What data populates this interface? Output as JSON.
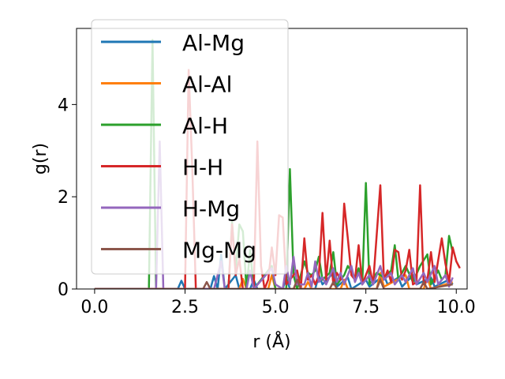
{
  "chart_data": {
    "type": "line",
    "xlabel": "r (Å)",
    "ylabel": "g(r)",
    "xlim": [
      -0.5,
      10.3
    ],
    "ylim": [
      0,
      5.65
    ],
    "x_ticks": [
      0.0,
      2.5,
      5.0,
      7.5,
      10.0
    ],
    "x_tick_labels": [
      "0.0",
      "2.5",
      "5.0",
      "7.5",
      "10.0"
    ],
    "y_ticks": [
      0,
      2,
      4
    ],
    "y_tick_labels": [
      "0",
      "2",
      "4"
    ],
    "grid": false,
    "legend_position": "upper-left",
    "series": [
      {
        "name": "Al-Mg",
        "color": "#1f77b4",
        "points": [
          [
            0.0,
            0
          ],
          [
            2.3,
            0
          ],
          [
            2.4,
            0.18
          ],
          [
            2.5,
            0
          ],
          [
            3.2,
            0
          ],
          [
            3.3,
            0.28
          ],
          [
            3.4,
            0
          ],
          [
            3.5,
            0.75
          ],
          [
            3.6,
            0
          ],
          [
            3.9,
            0.3
          ],
          [
            4.0,
            0
          ],
          [
            4.3,
            0
          ],
          [
            4.4,
            0.2
          ],
          [
            4.5,
            0
          ],
          [
            5.2,
            0
          ],
          [
            5.3,
            0.25
          ],
          [
            5.4,
            0
          ],
          [
            6.1,
            0
          ],
          [
            6.2,
            0.3
          ],
          [
            6.3,
            0.1
          ],
          [
            6.6,
            0.35
          ],
          [
            6.7,
            0.05
          ],
          [
            7.0,
            0.25
          ],
          [
            7.1,
            0
          ],
          [
            7.5,
            0.2
          ],
          [
            7.6,
            0.05
          ],
          [
            8.0,
            0.3
          ],
          [
            8.1,
            0.1
          ],
          [
            8.4,
            0.25
          ],
          [
            8.5,
            0.05
          ],
          [
            8.8,
            0.3
          ],
          [
            8.9,
            0.1
          ],
          [
            9.3,
            0.25
          ],
          [
            9.4,
            0.05
          ],
          [
            9.8,
            0.2
          ],
          [
            9.9,
            0.1
          ]
        ]
      },
      {
        "name": "Al-Al",
        "color": "#ff7f0e",
        "points": [
          [
            0.0,
            0
          ],
          [
            4.0,
            0
          ],
          [
            4.1,
            0.22
          ],
          [
            4.2,
            0
          ],
          [
            4.8,
            0
          ],
          [
            4.9,
            0.3
          ],
          [
            5.0,
            0
          ],
          [
            5.8,
            0
          ],
          [
            5.9,
            0.15
          ],
          [
            6.0,
            0
          ],
          [
            6.8,
            0
          ],
          [
            6.9,
            0.2
          ],
          [
            7.0,
            0
          ],
          [
            7.8,
            0
          ],
          [
            7.9,
            0.35
          ],
          [
            8.0,
            0.05
          ],
          [
            8.6,
            0.3
          ],
          [
            8.7,
            0
          ],
          [
            9.1,
            0
          ],
          [
            9.2,
            0.25
          ],
          [
            9.3,
            0
          ],
          [
            9.9,
            0.15
          ]
        ]
      },
      {
        "name": "Al-H",
        "color": "#2ca02c",
        "points": [
          [
            0.0,
            0
          ],
          [
            1.5,
            0
          ],
          [
            1.6,
            5.4
          ],
          [
            1.7,
            0
          ],
          [
            3.7,
            0
          ],
          [
            3.8,
            1.45
          ],
          [
            3.9,
            0.4
          ],
          [
            4.0,
            1.4
          ],
          [
            4.1,
            1.25
          ],
          [
            4.2,
            0
          ],
          [
            4.3,
            0.85
          ],
          [
            4.4,
            0
          ],
          [
            4.9,
            0.5
          ],
          [
            5.0,
            0
          ],
          [
            5.3,
            0
          ],
          [
            5.4,
            2.6
          ],
          [
            5.5,
            0.3
          ],
          [
            5.6,
            0
          ],
          [
            5.8,
            0.6
          ],
          [
            5.9,
            0.35
          ],
          [
            6.0,
            0.3
          ],
          [
            6.1,
            0.4
          ],
          [
            6.2,
            0.7
          ],
          [
            6.3,
            0.2
          ],
          [
            6.5,
            0.35
          ],
          [
            6.6,
            0.8
          ],
          [
            6.7,
            0.1
          ],
          [
            6.9,
            0.3
          ],
          [
            7.0,
            0.5
          ],
          [
            7.2,
            0.25
          ],
          [
            7.3,
            0.45
          ],
          [
            7.4,
            0.1
          ],
          [
            7.5,
            2.3
          ],
          [
            7.6,
            0.1
          ],
          [
            7.8,
            0.35
          ],
          [
            8.0,
            0.25
          ],
          [
            8.2,
            0.4
          ],
          [
            8.3,
            0.95
          ],
          [
            8.4,
            0.2
          ],
          [
            8.6,
            0.5
          ],
          [
            8.8,
            0.15
          ],
          [
            9.0,
            0.5
          ],
          [
            9.2,
            0.75
          ],
          [
            9.3,
            0.1
          ],
          [
            9.5,
            0.4
          ],
          [
            9.6,
            0.2
          ],
          [
            9.7,
            0.3
          ],
          [
            9.8,
            1.15
          ],
          [
            9.9,
            0.8
          ]
        ]
      },
      {
        "name": "H-H",
        "color": "#d62728",
        "points": [
          [
            0.0,
            0
          ],
          [
            2.5,
            0
          ],
          [
            2.6,
            4.75
          ],
          [
            2.7,
            2.6
          ],
          [
            2.8,
            0
          ],
          [
            3.0,
            0
          ],
          [
            3.7,
            0
          ],
          [
            3.8,
            1.4
          ],
          [
            3.9,
            0.3
          ],
          [
            4.0,
            0.65
          ],
          [
            4.1,
            0
          ],
          [
            4.4,
            0
          ],
          [
            4.5,
            3.2
          ],
          [
            4.6,
            0.5
          ],
          [
            4.7,
            0
          ],
          [
            4.8,
            0.2
          ],
          [
            4.9,
            0.9
          ],
          [
            5.0,
            0.3
          ],
          [
            5.1,
            1.6
          ],
          [
            5.2,
            1.55
          ],
          [
            5.3,
            0.1
          ],
          [
            5.4,
            0.2
          ],
          [
            5.6,
            0.4
          ],
          [
            5.7,
            0
          ],
          [
            5.8,
            1.1
          ],
          [
            5.9,
            0.2
          ],
          [
            6.0,
            0.3
          ],
          [
            6.1,
            0.1
          ],
          [
            6.2,
            0.3
          ],
          [
            6.3,
            1.65
          ],
          [
            6.4,
            0.2
          ],
          [
            6.5,
            1.05
          ],
          [
            6.6,
            0.1
          ],
          [
            6.7,
            0.35
          ],
          [
            6.8,
            0.2
          ],
          [
            6.9,
            1.85
          ],
          [
            7.0,
            1.1
          ],
          [
            7.1,
            0.3
          ],
          [
            7.2,
            0.2
          ],
          [
            7.3,
            0.95
          ],
          [
            7.4,
            0.1
          ],
          [
            7.6,
            0.5
          ],
          [
            7.7,
            0.1
          ],
          [
            7.9,
            2.25
          ],
          [
            8.0,
            0.2
          ],
          [
            8.1,
            0.4
          ],
          [
            8.2,
            0.15
          ],
          [
            8.3,
            0.85
          ],
          [
            8.4,
            0.8
          ],
          [
            8.5,
            0.2
          ],
          [
            8.6,
            0.4
          ],
          [
            8.7,
            0.85
          ],
          [
            8.8,
            0.1
          ],
          [
            8.9,
            0.15
          ],
          [
            9.0,
            2.25
          ],
          [
            9.1,
            0.1
          ],
          [
            9.2,
            0.2
          ],
          [
            9.3,
            0.8
          ],
          [
            9.4,
            0.15
          ],
          [
            9.6,
            1.1
          ],
          [
            9.7,
            0.55
          ],
          [
            9.8,
            0.15
          ],
          [
            9.9,
            0.9
          ],
          [
            10.0,
            0.6
          ],
          [
            10.1,
            0.45
          ]
        ]
      },
      {
        "name": "H-Mg",
        "color": "#9467bd",
        "points": [
          [
            0.0,
            0
          ],
          [
            1.7,
            0
          ],
          [
            1.8,
            3.2
          ],
          [
            1.9,
            0
          ],
          [
            3.3,
            0
          ],
          [
            3.4,
            0.3
          ],
          [
            3.5,
            0.6
          ],
          [
            3.6,
            0
          ],
          [
            4.2,
            0
          ],
          [
            4.3,
            0.4
          ],
          [
            4.4,
            0
          ],
          [
            4.9,
            0.45
          ],
          [
            5.0,
            0.1
          ],
          [
            5.2,
            0
          ],
          [
            5.3,
            0.5
          ],
          [
            5.4,
            0.1
          ],
          [
            5.5,
            0.7
          ],
          [
            5.6,
            0.1
          ],
          [
            5.8,
            0.1
          ],
          [
            5.9,
            0.35
          ],
          [
            6.0,
            0.05
          ],
          [
            6.1,
            0.6
          ],
          [
            6.2,
            0.15
          ],
          [
            6.3,
            0.25
          ],
          [
            6.4,
            0.1
          ],
          [
            6.6,
            0.45
          ],
          [
            6.7,
            0.15
          ],
          [
            6.8,
            0.35
          ],
          [
            6.9,
            0.1
          ],
          [
            7.1,
            0.5
          ],
          [
            7.2,
            0.15
          ],
          [
            7.3,
            0.35
          ],
          [
            7.4,
            0.1
          ],
          [
            7.6,
            0.3
          ],
          [
            7.7,
            0.1
          ],
          [
            7.9,
            0.5
          ],
          [
            8.0,
            0.2
          ],
          [
            8.2,
            0.35
          ],
          [
            8.3,
            0.1
          ],
          [
            8.5,
            0.3
          ],
          [
            8.6,
            0.15
          ],
          [
            8.8,
            0.45
          ],
          [
            8.9,
            0.1
          ],
          [
            9.1,
            0.35
          ],
          [
            9.2,
            0.15
          ],
          [
            9.4,
            0.5
          ],
          [
            9.5,
            0.1
          ],
          [
            9.7,
            0.3
          ],
          [
            9.8,
            0.05
          ],
          [
            9.9,
            0.25
          ]
        ]
      },
      {
        "name": "Mg-Mg",
        "color": "#8c564b",
        "points": [
          [
            0.0,
            0
          ],
          [
            3.0,
            0
          ],
          [
            3.1,
            0.15
          ],
          [
            3.2,
            0
          ],
          [
            5.5,
            0
          ],
          [
            5.6,
            0.2
          ],
          [
            5.7,
            0
          ],
          [
            6.5,
            0
          ],
          [
            6.6,
            0.15
          ],
          [
            6.7,
            0
          ],
          [
            7.8,
            0
          ],
          [
            7.9,
            0.2
          ],
          [
            8.0,
            0
          ],
          [
            9.0,
            0
          ],
          [
            9.1,
            0.15
          ],
          [
            9.2,
            0
          ],
          [
            9.9,
            0.1
          ]
        ]
      }
    ]
  }
}
